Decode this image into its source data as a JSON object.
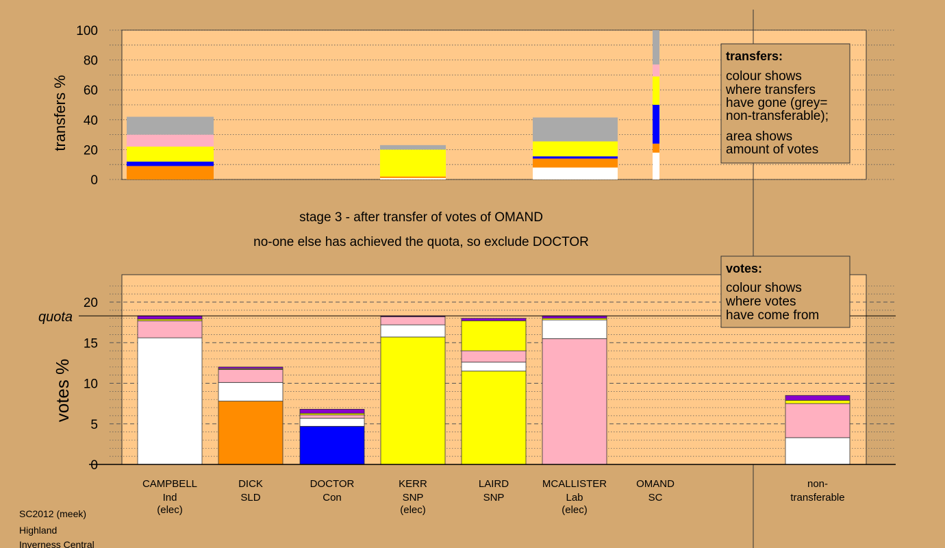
{
  "colors": {
    "page_bg": "#d4a870",
    "panel_bg": "#ffc98a",
    "Con": "#0000ff",
    "SLD": "#ff8c00",
    "SNP": "#ffff00",
    "Lab": "#ffb0c0",
    "Ind": "#ffffff",
    "SC": "#8800cc",
    "nontransferable": "#aaaaaa"
  },
  "stage_title": "stage 3 - after transfer of votes of OMAND",
  "stage_subtitle": "no-one else has achieved the quota, so exclude DOCTOR",
  "footer": [
    "SC2012 (meek)",
    "Highland",
    "Inverness Central"
  ],
  "legend_transfers": {
    "title": "transfers:",
    "text1": [
      "colour shows",
      "where transfers",
      "have gone (grey=",
      "non-transferable);"
    ],
    "text2": [
      "area shows",
      "amount of votes"
    ]
  },
  "legend_votes": {
    "title": "votes:",
    "text": [
      "colour shows",
      "where votes",
      "have come from"
    ]
  },
  "chart_data": [
    {
      "type": "bar",
      "stacked": true,
      "ylabel": "transfers %",
      "ylim": [
        0,
        100
      ],
      "yticks": [
        0,
        20,
        40,
        60,
        80,
        100
      ],
      "grid": true,
      "note": "bar width proportional to transferred votes",
      "categories": [
        "CAMPBELL",
        "DICK",
        "DOCTOR",
        "KERR",
        "LAIRD",
        "MCALLISTER",
        "OMAND"
      ],
      "bars": [
        {
          "candidate": "CAMPBELL",
          "segments": [
            {
              "party": "SLD",
              "value": 9
            },
            {
              "party": "Con",
              "value": 3
            },
            {
              "party": "SNP",
              "value": 10
            },
            {
              "party": "Lab",
              "value": 8
            },
            {
              "party": "nontransferable",
              "value": 12
            }
          ]
        },
        {
          "candidate": "KERR",
          "segments": [
            {
              "party": "Ind",
              "value": 1
            },
            {
              "party": "SLD",
              "value": 1
            },
            {
              "party": "SNP",
              "value": 18
            },
            {
              "party": "nontransferable",
              "value": 3
            }
          ]
        },
        {
          "candidate": "MCALLISTER",
          "segments": [
            {
              "party": "Ind",
              "value": 8
            },
            {
              "party": "SLD",
              "value": 6
            },
            {
              "party": "Con",
              "value": 1.5
            },
            {
              "party": "SNP",
              "value": 10
            },
            {
              "party": "nontransferable",
              "value": 16
            }
          ]
        },
        {
          "candidate": "OMAND",
          "segments": [
            {
              "party": "Ind",
              "value": 18
            },
            {
              "party": "SLD",
              "value": 6
            },
            {
              "party": "Con",
              "value": 26
            },
            {
              "party": "SNP",
              "value": 19
            },
            {
              "party": "Lab",
              "value": 8
            },
            {
              "party": "nontransferable",
              "value": 23
            }
          ]
        }
      ]
    },
    {
      "type": "bar",
      "stacked": true,
      "ylabel": "votes %",
      "ylim": [
        0,
        23
      ],
      "yticks": [
        0,
        5,
        10,
        15,
        20
      ],
      "quota": 18.3,
      "quota_label": "quota",
      "grid": true,
      "categories": [
        {
          "name": "CAMPBELL",
          "party": "Ind",
          "status": "(elec)"
        },
        {
          "name": "DICK",
          "party": "SLD",
          "status": ""
        },
        {
          "name": "DOCTOR",
          "party": "Con",
          "status": ""
        },
        {
          "name": "KERR",
          "party": "SNP",
          "status": "(elec)"
        },
        {
          "name": "LAIRD",
          "party": "SNP",
          "status": ""
        },
        {
          "name": "MCALLISTER",
          "party": "Lab",
          "status": "(elec)"
        },
        {
          "name": "OMAND",
          "party": "SC",
          "status": ""
        }
      ],
      "nontransferable_label": [
        "non-",
        "transferable"
      ],
      "bars": [
        {
          "candidate": "CAMPBELL",
          "segments": [
            {
              "party": "Ind",
              "value": 15.6
            },
            {
              "party": "Lab",
              "value": 2.1
            },
            {
              "party": "SNP",
              "value": 0.2
            },
            {
              "party": "SC",
              "value": 0.4
            }
          ]
        },
        {
          "candidate": "DICK",
          "segments": [
            {
              "party": "SLD",
              "value": 7.8
            },
            {
              "party": "Ind",
              "value": 2.3
            },
            {
              "party": "Lab",
              "value": 1.6
            },
            {
              "party": "SNP",
              "value": 0.1
            },
            {
              "party": "SC",
              "value": 0.2
            }
          ]
        },
        {
          "candidate": "DOCTOR",
          "segments": [
            {
              "party": "Con",
              "value": 4.7
            },
            {
              "party": "Ind",
              "value": 1
            },
            {
              "party": "Lab",
              "value": 0.4
            },
            {
              "party": "SNP",
              "value": 0.2
            },
            {
              "party": "SC",
              "value": 0.5
            }
          ]
        },
        {
          "candidate": "KERR",
          "segments": [
            {
              "party": "SNP",
              "value": 15.7
            },
            {
              "party": "Ind",
              "value": 1.5
            },
            {
              "party": "Lab",
              "value": 1
            },
            {
              "party": "SC",
              "value": 0.1
            }
          ]
        },
        {
          "candidate": "LAIRD",
          "segments": [
            {
              "party": "SNP",
              "value": 11.5
            },
            {
              "party": "Ind",
              "value": 1.1
            },
            {
              "party": "Lab",
              "value": 1.4
            },
            {
              "party": "SNP",
              "value": 3.7
            },
            {
              "party": "SC",
              "value": 0.3
            }
          ]
        },
        {
          "candidate": "MCALLISTER",
          "segments": [
            {
              "party": "Lab",
              "value": 15.5
            },
            {
              "party": "Ind",
              "value": 2.3
            },
            {
              "party": "SNP",
              "value": 0.2
            },
            {
              "party": "SC",
              "value": 0.3
            }
          ]
        },
        {
          "candidate": "OMAND",
          "segments": []
        },
        {
          "candidate": "nontransferable",
          "segments": [
            {
              "party": "Ind",
              "value": 3.3
            },
            {
              "party": "Lab",
              "value": 4.2
            },
            {
              "party": "SNP",
              "value": 0.4
            },
            {
              "party": "SC",
              "value": 0.6
            }
          ]
        }
      ]
    }
  ]
}
